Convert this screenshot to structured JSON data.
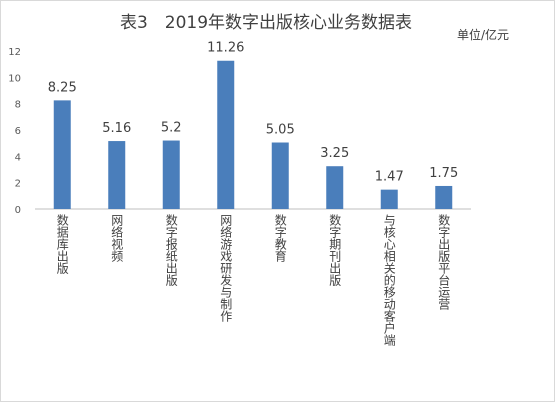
{
  "title": "表3　2019年数字出版核心业务数据表",
  "unit_label": "单位/亿元",
  "colors": {
    "bar": "#4a7ebb",
    "axis": "#bfbfbf",
    "text": "#404040"
  },
  "chart_data": {
    "type": "bar",
    "title": "表3　2019年数字出版核心业务数据表",
    "ylabel": "单位/亿元",
    "xlabel": "",
    "ylim": [
      0,
      12
    ],
    "yticks": [
      0,
      2,
      4,
      6,
      8,
      10,
      12
    ],
    "grid": false,
    "legend": "none",
    "categories": [
      "数据库出版",
      "网络视频",
      "数字报纸出版",
      "网络游戏研发与制作",
      "数字教育",
      "数字期刊出版",
      "与核心相关的移动客户端",
      "数字出版平台运营"
    ],
    "values": [
      8.25,
      5.16,
      5.2,
      11.26,
      5.05,
      3.25,
      1.47,
      1.75
    ],
    "value_labels": [
      "8.25",
      "5.16",
      "5.2",
      "11.26",
      "5.05",
      "3.25",
      "1.47",
      "1.75"
    ]
  }
}
